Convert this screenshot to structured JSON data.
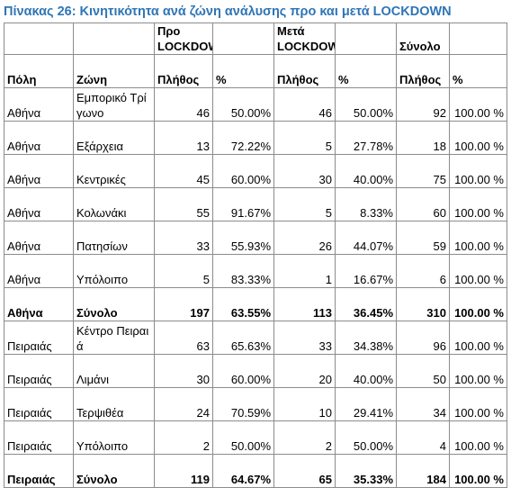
{
  "title": "Πίνακας 26: Κινητικότητα ανά ζώνη ανάλυσης προ και μετά LOCKDOWN",
  "headers": {
    "group_pre": "Προ LOCKDOWN",
    "group_post": "Μετά LOCKDOWN",
    "group_total": "Σύνολο",
    "city": "Πόλη",
    "zone": "Ζώνη",
    "pre_count": "Πλήθος",
    "pre_pct": "%",
    "post_count": "Πλήθος",
    "post_pct": "%",
    "total_count": "Πλήθος",
    "total_pct": "%"
  },
  "rows": [
    {
      "city": "Αθήνα",
      "zone": "Εμπορικό Τρίγωνο",
      "pre_count": "46",
      "pre_pct": "50.00%",
      "post_count": "46",
      "post_pct": "50.00%",
      "total_count": "92",
      "total_pct": "100.00 %",
      "bold": false
    },
    {
      "city": "Αθήνα",
      "zone": "Εξάρχεια",
      "pre_count": "13",
      "pre_pct": "72.22%",
      "post_count": "5",
      "post_pct": "27.78%",
      "total_count": "18",
      "total_pct": "100.00 %",
      "bold": false
    },
    {
      "city": "Αθήνα",
      "zone": "Κεντρικές",
      "pre_count": "45",
      "pre_pct": "60.00%",
      "post_count": "30",
      "post_pct": "40.00%",
      "total_count": "75",
      "total_pct": "100.00 %",
      "bold": false
    },
    {
      "city": "Αθήνα",
      "zone": "Κολωνάκι",
      "pre_count": "55",
      "pre_pct": "91.67%",
      "post_count": "5",
      "post_pct": "8.33%",
      "total_count": "60",
      "total_pct": "100.00 %",
      "bold": false
    },
    {
      "city": "Αθήνα",
      "zone": "Πατησίων",
      "pre_count": "33",
      "pre_pct": "55.93%",
      "post_count": "26",
      "post_pct": "44.07%",
      "total_count": "59",
      "total_pct": "100.00 %",
      "bold": false
    },
    {
      "city": "Αθήνα",
      "zone": "Υπόλοιπο",
      "pre_count": "5",
      "pre_pct": "83.33%",
      "post_count": "1",
      "post_pct": "16.67%",
      "total_count": "6",
      "total_pct": "100.00 %",
      "bold": false
    },
    {
      "city": "Αθήνα",
      "zone": "Σύνολο",
      "pre_count": "197",
      "pre_pct": "63.55%",
      "post_count": "113",
      "post_pct": "36.45%",
      "total_count": "310",
      "total_pct": "100.00 %",
      "bold": true
    },
    {
      "city": "Πειραιάς",
      "zone": "Κέντρο Πειραιά",
      "pre_count": "63",
      "pre_pct": "65.63%",
      "post_count": "33",
      "post_pct": "34.38%",
      "total_count": "96",
      "total_pct": "100.00 %",
      "bold": false
    },
    {
      "city": "Πειραιάς",
      "zone": "Λιμάνι",
      "pre_count": "30",
      "pre_pct": "60.00%",
      "post_count": "20",
      "post_pct": "40.00%",
      "total_count": "50",
      "total_pct": "100.00 %",
      "bold": false
    },
    {
      "city": "Πειραιάς",
      "zone": "Τερψιθέα",
      "pre_count": "24",
      "pre_pct": "70.59%",
      "post_count": "10",
      "post_pct": "29.41%",
      "total_count": "34",
      "total_pct": "100.00 %",
      "bold": false
    },
    {
      "city": "Πειραιάς",
      "zone": "Υπόλοιπο",
      "pre_count": "2",
      "pre_pct": "50.00%",
      "post_count": "2",
      "post_pct": "50.00%",
      "total_count": "4",
      "total_pct": "100.00 %",
      "bold": false
    },
    {
      "city": "Πειραιάς",
      "zone": "Σύνολο",
      "pre_count": "119",
      "pre_pct": "64.67%",
      "post_count": "65",
      "post_pct": "35.33%",
      "total_count": "184",
      "total_pct": "100.00 %",
      "bold": true
    }
  ],
  "colors": {
    "title": "#2e75b6",
    "border": "#8c8c8c"
  }
}
